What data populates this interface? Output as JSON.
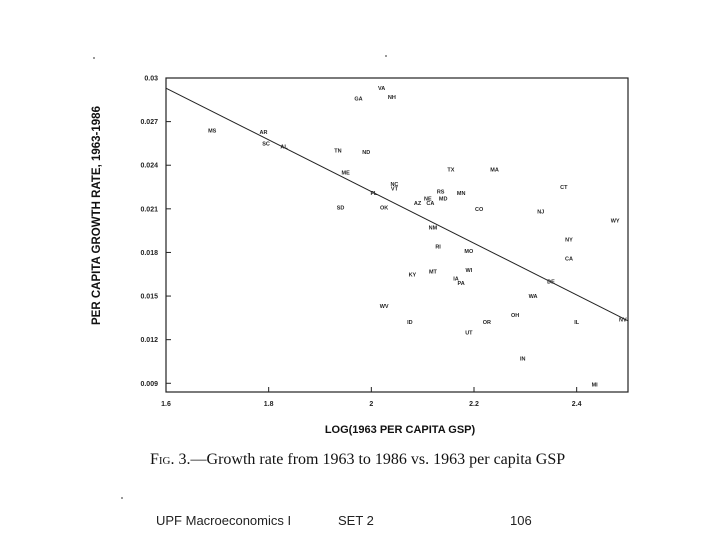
{
  "chart_data": {
    "type": "scatter",
    "title": "",
    "xlabel": "LOG(1963 PER CAPITA GSP)",
    "ylabel": "PER CAPITA GROWTH RATE, 1963-1986",
    "xlim": [
      1.6,
      2.5
    ],
    "ylim": [
      0.0084,
      0.03
    ],
    "xticks": [
      1.6,
      1.8,
      2.0,
      2.2,
      2.4
    ],
    "xtick_labels": [
      "1.6",
      "1.8",
      "2",
      "2.2",
      "2.4"
    ],
    "yticks": [
      0.009,
      0.012,
      0.015,
      0.018,
      0.021,
      0.024,
      0.027,
      0.03
    ],
    "ytick_labels": [
      "0.009",
      "0.012",
      "0.015",
      "0.018",
      "0.021",
      "0.024",
      "0.027",
      "0.03"
    ],
    "grid": false,
    "fit_line": {
      "x": [
        1.6,
        2.5
      ],
      "y": [
        0.0293,
        0.0133
      ]
    },
    "points": [
      {
        "label": "VA",
        "x": 2.02,
        "y": 0.0293
      },
      {
        "label": "GA",
        "x": 1.975,
        "y": 0.0286
      },
      {
        "label": "NH",
        "x": 2.04,
        "y": 0.0287
      },
      {
        "label": "MS",
        "x": 1.69,
        "y": 0.0264
      },
      {
        "label": "AR",
        "x": 1.79,
        "y": 0.0263
      },
      {
        "label": "SC",
        "x": 1.795,
        "y": 0.0255
      },
      {
        "label": "AL",
        "x": 1.83,
        "y": 0.0253
      },
      {
        "label": "TN",
        "x": 1.935,
        "y": 0.025
      },
      {
        "label": "ND",
        "x": 1.99,
        "y": 0.0249
      },
      {
        "label": "TX",
        "x": 2.155,
        "y": 0.0237
      },
      {
        "label": "MA",
        "x": 2.24,
        "y": 0.0237
      },
      {
        "label": "ME",
        "x": 1.95,
        "y": 0.0235
      },
      {
        "label": "NC",
        "x": 2.045,
        "y": 0.0227
      },
      {
        "label": "VT",
        "x": 2.045,
        "y": 0.0224
      },
      {
        "label": "CT",
        "x": 2.375,
        "y": 0.0225
      },
      {
        "label": "RS",
        "x": 2.135,
        "y": 0.0222
      },
      {
        "label": "MN",
        "x": 2.175,
        "y": 0.0221
      },
      {
        "label": "MD",
        "x": 2.14,
        "y": 0.0217
      },
      {
        "label": "FL",
        "x": 2.005,
        "y": 0.0221
      },
      {
        "label": "NE",
        "x": 2.11,
        "y": 0.0217
      },
      {
        "label": "AZ",
        "x": 2.09,
        "y": 0.0214
      },
      {
        "label": "CA",
        "x": 2.115,
        "y": 0.0214
      },
      {
        "label": "SD",
        "x": 1.94,
        "y": 0.0211
      },
      {
        "label": "OK",
        "x": 2.025,
        "y": 0.0211
      },
      {
        "label": "CO",
        "x": 2.21,
        "y": 0.021
      },
      {
        "label": "NJ",
        "x": 2.33,
        "y": 0.0208
      },
      {
        "label": "WY",
        "x": 2.475,
        "y": 0.0202
      },
      {
        "label": "NM",
        "x": 2.12,
        "y": 0.0197
      },
      {
        "label": "NY",
        "x": 2.385,
        "y": 0.0189
      },
      {
        "label": "RI",
        "x": 2.13,
        "y": 0.0184
      },
      {
        "label": "MO",
        "x": 2.19,
        "y": 0.0181
      },
      {
        "label": "CA",
        "x": 2.385,
        "y": 0.0176
      },
      {
        "label": "MT",
        "x": 2.12,
        "y": 0.0167
      },
      {
        "label": "WI",
        "x": 2.19,
        "y": 0.0168
      },
      {
        "label": "KY",
        "x": 2.08,
        "y": 0.0165
      },
      {
        "label": "IA",
        "x": 2.165,
        "y": 0.0162
      },
      {
        "label": "PA",
        "x": 2.175,
        "y": 0.0159
      },
      {
        "label": "DE",
        "x": 2.35,
        "y": 0.016
      },
      {
        "label": "WA",
        "x": 2.315,
        "y": 0.015
      },
      {
        "label": "WV",
        "x": 2.025,
        "y": 0.0143
      },
      {
        "label": "OH",
        "x": 2.28,
        "y": 0.0137
      },
      {
        "label": "NV",
        "x": 2.49,
        "y": 0.0134
      },
      {
        "label": "ID",
        "x": 2.075,
        "y": 0.0132
      },
      {
        "label": "OR",
        "x": 2.225,
        "y": 0.0132
      },
      {
        "label": "IL",
        "x": 2.4,
        "y": 0.0132
      },
      {
        "label": "UT",
        "x": 2.19,
        "y": 0.0125
      },
      {
        "label": "IN",
        "x": 2.295,
        "y": 0.0107
      },
      {
        "label": "MI",
        "x": 2.435,
        "y": 0.0089
      }
    ],
    "caption_fig": "Fig. 3.",
    "caption_text": "—Growth rate from 1963 to 1986 vs. 1963 per capita GSP"
  },
  "footer": {
    "course": "UPF Macroeconomics I",
    "set": "SET 2",
    "page": "106"
  }
}
